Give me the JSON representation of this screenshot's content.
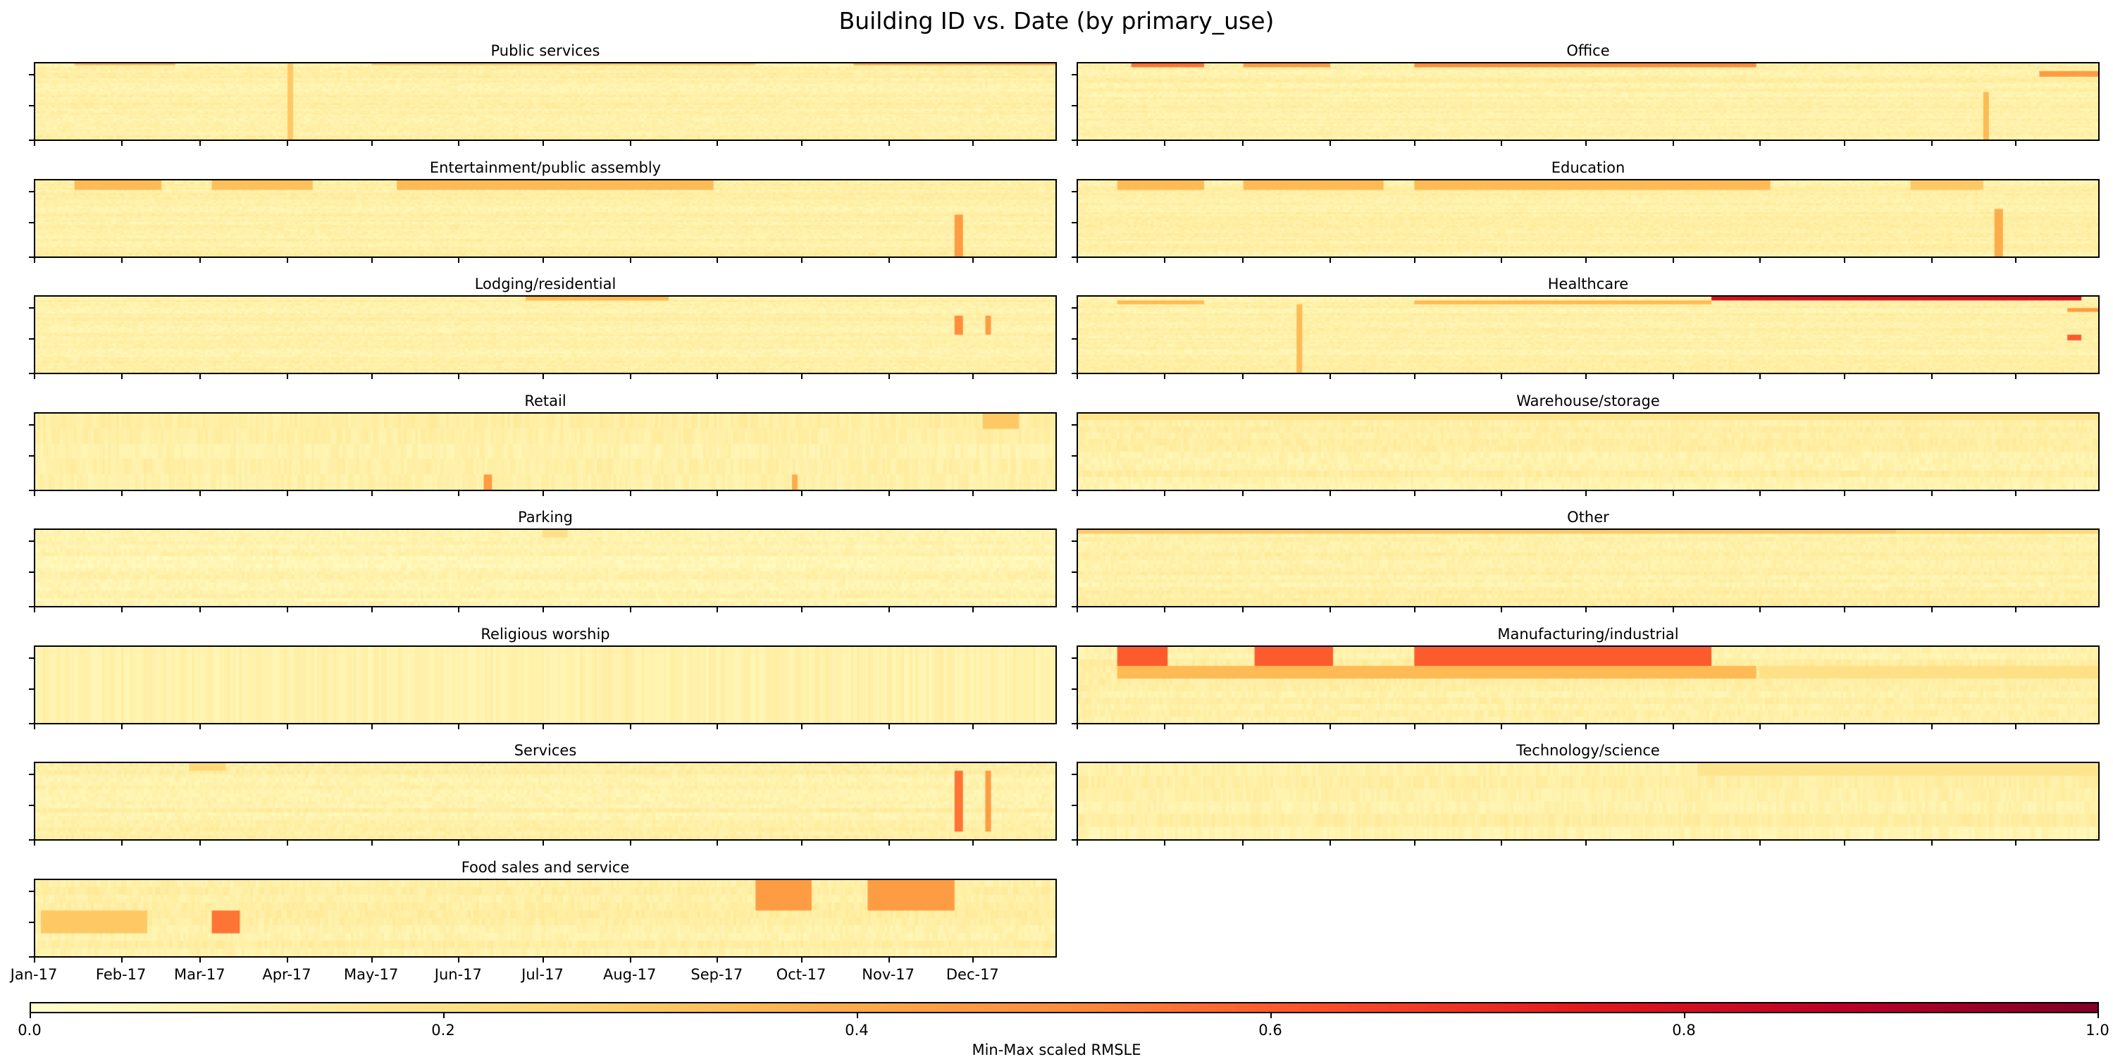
{
  "title": "Building ID vs. Date (by primary_use)",
  "colors": {
    "colormap": [
      "#ffffcc",
      "#ffeda0",
      "#fed976",
      "#feb24c",
      "#fd8d3c",
      "#fc4e2a",
      "#e31a1c",
      "#bd0026",
      "#800026"
    ],
    "missing": "#ffffff"
  },
  "chart_data": {
    "type": "heatmap",
    "subtitle": "",
    "xlabel": "",
    "ylabel": "",
    "x_tick_labels": [
      "Jan-17",
      "Feb-17",
      "Mar-17",
      "Apr-17",
      "May-17",
      "Jun-17",
      "Jul-17",
      "Aug-17",
      "Sep-17",
      "Oct-17",
      "Nov-17",
      "Dec-17"
    ],
    "x_range": [
      "2017-01-01",
      "2017-12-31"
    ],
    "colorbar": {
      "label": "Min-Max scaled RMSLE",
      "range": [
        0.0,
        1.0
      ],
      "tick_labels": [
        "0.0",
        "0.2",
        "0.4",
        "0.6",
        "0.8",
        "1.0"
      ]
    },
    "panels": [
      {
        "name": "Public services",
        "rows": 40,
        "base": 0.1,
        "bands": [
          {
            "rows": [
              0,
              1
            ],
            "from": "2017-01-15",
            "to": "2017-02-20",
            "value": 0.35
          },
          {
            "rows": [
              0,
              1
            ],
            "from": "2017-05-01",
            "to": "2017-09-15",
            "value": 0.3
          },
          {
            "rows": [
              0,
              1
            ],
            "from": "2017-10-20",
            "to": "2017-12-31",
            "value": 0.4
          },
          {
            "rows": [
              0,
              40
            ],
            "from": "2017-04-01",
            "to": "2017-04-03",
            "value": 0.3
          }
        ]
      },
      {
        "name": "Office",
        "rows": 40,
        "base": 0.1,
        "bands": [
          {
            "rows": [
              0,
              2
            ],
            "from": "2017-01-20",
            "to": "2017-02-15",
            "value": 0.55
          },
          {
            "rows": [
              0,
              2
            ],
            "from": "2017-03-01",
            "to": "2017-04-01",
            "value": 0.45
          },
          {
            "rows": [
              0,
              2
            ],
            "from": "2017-05-01",
            "to": "2017-08-31",
            "value": 0.5
          },
          {
            "rows": [
              4,
              7
            ],
            "from": "2017-12-10",
            "to": "2017-12-31",
            "value": 0.45
          },
          {
            "rows": [
              15,
              40
            ],
            "from": "2017-11-20",
            "to": "2017-11-22",
            "value": 0.35
          }
        ]
      },
      {
        "name": "Entertainment/public assembly",
        "rows": 40,
        "base": 0.1,
        "bands": [
          {
            "rows": [
              0,
              5
            ],
            "from": "2017-01-15",
            "to": "2017-02-15",
            "value": 0.35
          },
          {
            "rows": [
              0,
              5
            ],
            "from": "2017-03-05",
            "to": "2017-04-10",
            "value": 0.33
          },
          {
            "rows": [
              0,
              5
            ],
            "from": "2017-05-10",
            "to": "2017-08-31",
            "value": 0.35
          },
          {
            "rows": [
              18,
              40
            ],
            "from": "2017-11-25",
            "to": "2017-11-28",
            "value": 0.45
          }
        ]
      },
      {
        "name": "Education",
        "rows": 40,
        "base": 0.1,
        "bands": [
          {
            "rows": [
              0,
              5
            ],
            "from": "2017-01-15",
            "to": "2017-02-15",
            "value": 0.35
          },
          {
            "rows": [
              0,
              5
            ],
            "from": "2017-03-01",
            "to": "2017-04-20",
            "value": 0.35
          },
          {
            "rows": [
              0,
              5
            ],
            "from": "2017-05-01",
            "to": "2017-09-05",
            "value": 0.35
          },
          {
            "rows": [
              0,
              5
            ],
            "from": "2017-10-25",
            "to": "2017-11-20",
            "value": 0.3
          },
          {
            "rows": [
              15,
              40
            ],
            "from": "2017-11-24",
            "to": "2017-11-27",
            "value": 0.4
          }
        ]
      },
      {
        "name": "Lodging/residential",
        "rows": 40,
        "base": 0.1,
        "bands": [
          {
            "rows": [
              0,
              2
            ],
            "from": "2017-06-25",
            "to": "2017-08-15",
            "value": 0.35
          },
          {
            "rows": [
              10,
              20
            ],
            "from": "2017-11-25",
            "to": "2017-11-28",
            "value": 0.5
          },
          {
            "rows": [
              10,
              20
            ],
            "from": "2017-12-06",
            "to": "2017-12-08",
            "value": 0.45
          }
        ]
      },
      {
        "name": "Healthcare",
        "rows": 40,
        "base": 0.1,
        "bands": [
          {
            "rows": [
              0,
              2
            ],
            "from": "2017-08-15",
            "to": "2017-12-25",
            "value": 0.8
          },
          {
            "rows": [
              2,
              4
            ],
            "from": "2017-01-15",
            "to": "2017-02-15",
            "value": 0.35
          },
          {
            "rows": [
              2,
              4
            ],
            "from": "2017-05-01",
            "to": "2017-08-15",
            "value": 0.35
          },
          {
            "rows": [
              4,
              40
            ],
            "from": "2017-03-20",
            "to": "2017-03-22",
            "value": 0.35
          },
          {
            "rows": [
              6,
              8
            ],
            "from": "2017-12-20",
            "to": "2017-12-31",
            "value": 0.45
          },
          {
            "rows": [
              20,
              23
            ],
            "from": "2017-12-20",
            "to": "2017-12-25",
            "value": 0.6
          }
        ]
      },
      {
        "name": "Retail",
        "rows": 5,
        "base": 0.1,
        "bands": [
          {
            "rows": [
              4,
              5
            ],
            "from": "2017-06-10",
            "to": "2017-06-13",
            "value": 0.45
          },
          {
            "rows": [
              4,
              5
            ],
            "from": "2017-09-28",
            "to": "2017-09-30",
            "value": 0.4
          },
          {
            "rows": [
              0,
              1
            ],
            "from": "2017-12-05",
            "to": "2017-12-18",
            "value": 0.3
          }
        ]
      },
      {
        "name": "Warehouse/storage",
        "rows": 12,
        "base": 0.1,
        "bands": [
          {
            "rows": [
              0,
              1
            ],
            "from": "2017-01-01",
            "to": "2017-12-31",
            "value": 0.18
          }
        ]
      },
      {
        "name": "Parking",
        "rows": 20,
        "base": 0.08,
        "bands": [
          {
            "rows": [
              0,
              2
            ],
            "from": "2017-07-01",
            "to": "2017-07-10",
            "value": 0.2
          }
        ]
      },
      {
        "name": "Other",
        "rows": 20,
        "base": 0.1,
        "bands": [
          {
            "rows": [
              0,
              1
            ],
            "from": "2017-01-01",
            "to": "2017-10-20",
            "value": 0.3
          },
          {
            "rows": [
              0,
              1
            ],
            "from": "2017-10-20",
            "to": "2017-12-31",
            "value": 0.25
          }
        ]
      },
      {
        "name": "Religious worship",
        "rows": 1,
        "base": 0.1,
        "bands": []
      },
      {
        "name": "Manufacturing/industrial",
        "rows": 12,
        "base": 0.1,
        "bands": [
          {
            "rows": [
              0,
              3
            ],
            "from": "2017-01-15",
            "to": "2017-02-02",
            "value": 0.6
          },
          {
            "rows": [
              0,
              3
            ],
            "from": "2017-03-05",
            "to": "2017-04-02",
            "value": 0.6
          },
          {
            "rows": [
              0,
              3
            ],
            "from": "2017-05-01",
            "to": "2017-08-15",
            "value": 0.6
          },
          {
            "rows": [
              3,
              5
            ],
            "from": "2017-01-15",
            "to": "2017-08-31",
            "value": 0.35
          },
          {
            "rows": [
              3,
              5
            ],
            "from": "2017-09-01",
            "to": "2017-12-31",
            "value": 0.2
          }
        ]
      },
      {
        "name": "Services",
        "rows": 20,
        "base": 0.1,
        "bands": [
          {
            "rows": [
              0,
              2
            ],
            "from": "2017-02-25",
            "to": "2017-03-10",
            "value": 0.25
          },
          {
            "rows": [
              2,
              18
            ],
            "from": "2017-11-25",
            "to": "2017-11-28",
            "value": 0.55
          },
          {
            "rows": [
              2,
              18
            ],
            "from": "2017-12-06",
            "to": "2017-12-08",
            "value": 0.45
          }
        ]
      },
      {
        "name": "Technology/science",
        "rows": 6,
        "base": 0.1,
        "bands": [
          {
            "rows": [
              0,
              1
            ],
            "from": "2017-08-10",
            "to": "2017-12-31",
            "value": 0.18
          }
        ]
      },
      {
        "name": "Food sales and service",
        "rows": 10,
        "base": 0.1,
        "bands": [
          {
            "rows": [
              0,
              4
            ],
            "from": "2017-09-15",
            "to": "2017-10-05",
            "value": 0.45
          },
          {
            "rows": [
              0,
              4
            ],
            "from": "2017-10-25",
            "to": "2017-11-25",
            "value": 0.45
          },
          {
            "rows": [
              4,
              7
            ],
            "from": "2017-03-05",
            "to": "2017-03-15",
            "value": 0.55
          },
          {
            "rows": [
              4,
              7
            ],
            "from": "2017-01-03",
            "to": "2017-02-10",
            "value": 0.3
          }
        ]
      }
    ]
  }
}
